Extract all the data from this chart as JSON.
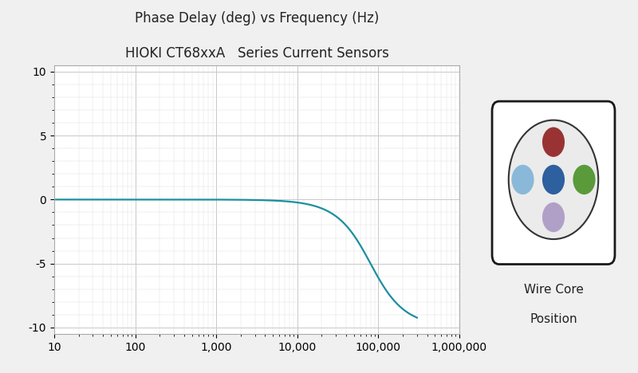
{
  "title_line1": "Phase Delay (deg) vs Frequency (Hz)",
  "title_line2": "HIOKI CT68xxA   Series Current Sensors",
  "title_fontsize": 12,
  "background_color": "#f0f0f0",
  "plot_bg_color": "#ffffff",
  "line_color": "#1a8fa0",
  "line_width": 1.6,
  "ylim": [
    -10.5,
    10.5
  ],
  "yticks": [
    -10,
    -5,
    0,
    5,
    10
  ],
  "xtick_labels": [
    "10",
    "100",
    "1,000",
    "10,000",
    "100,000",
    "1,000,000"
  ],
  "xtick_values": [
    10,
    100,
    1000,
    10000,
    100000,
    1000000
  ],
  "grid_color": "#c8c8c8",
  "grid_minor_color": "#e2e2e2",
  "dot_top_color": "#993333",
  "dot_left_color": "#8ab8d8",
  "dot_center_color": "#2e5f9e",
  "dot_right_color": "#5a9a3a",
  "dot_bottom_color": "#b0a0c8",
  "wire_core_label_line1": "Wire Core",
  "wire_core_label_line2": "Position",
  "label_fontsize": 11
}
